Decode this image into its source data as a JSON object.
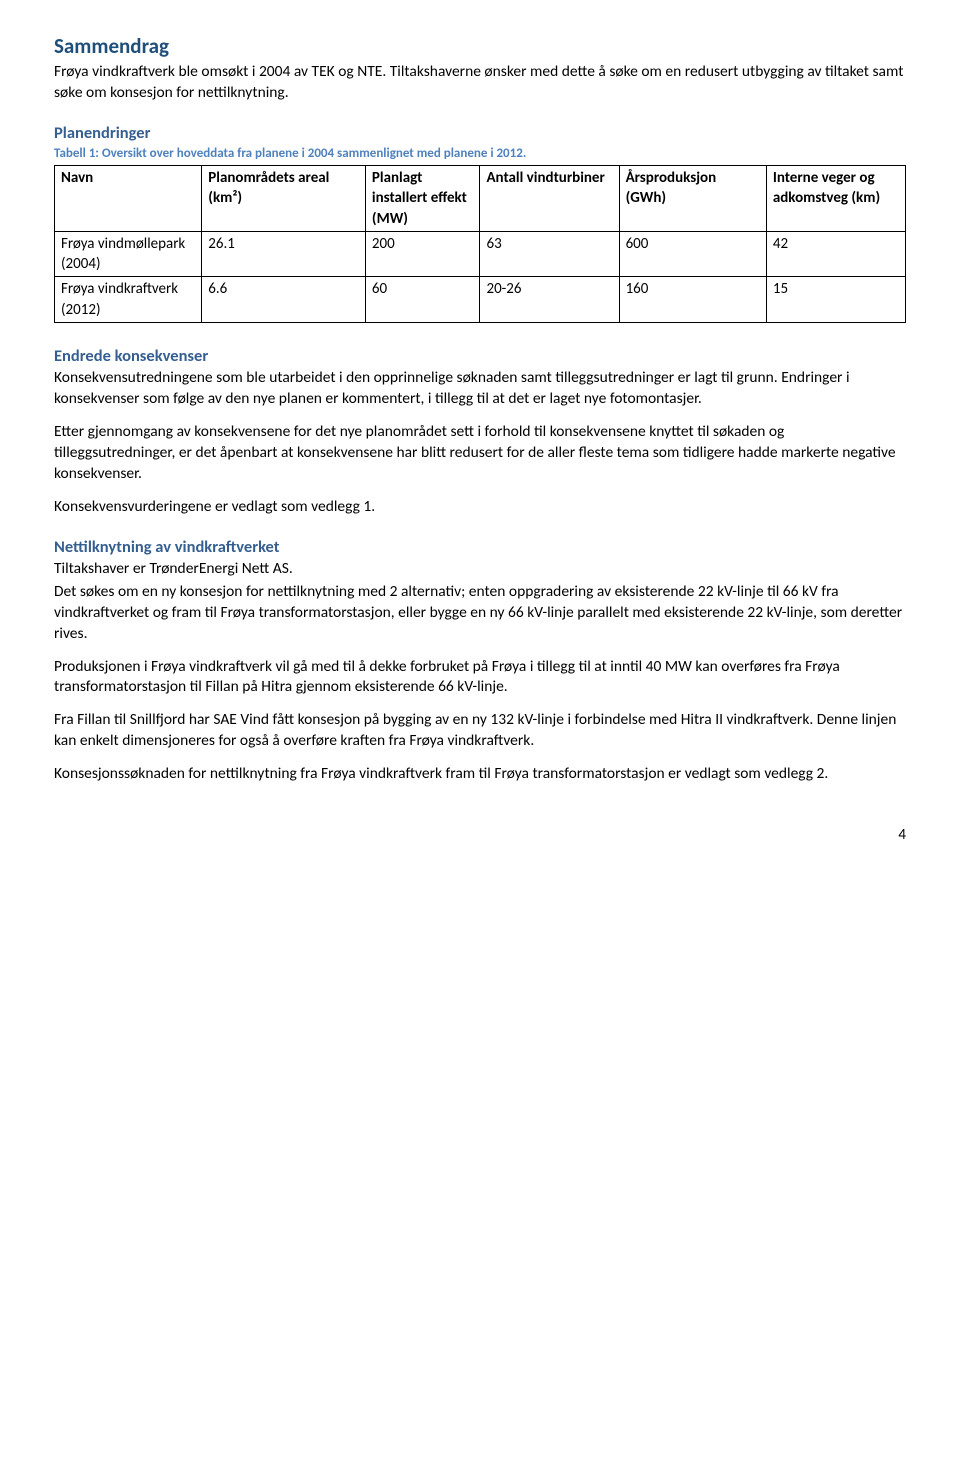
{
  "heading": "Sammendrag",
  "intro_para": "Frøya vindkraftverk ble omsøkt i 2004 av TEK og NTE. Tiltakshaverne ønsker med dette å søke om en redusert utbygging av tiltaket samt søke om konsesjon for nettilknytning.",
  "sec_plan": {
    "title": "Planendringer",
    "caption": "Tabell 1: Oversikt over hoveddata fra planene i 2004 sammenlignet med planene i 2012.",
    "table": {
      "columns": [
        "Navn",
        "Planområdets areal (km²)",
        "Planlagt installert effekt (MW)",
        "Antall vindturbiner",
        "Årsproduksjon (GWh)",
        "Interne veger og adkomstveg (km)"
      ],
      "rows": [
        [
          "Frøya vindmøllepark (2004)",
          "26.1",
          "200",
          "63",
          "600",
          "42"
        ],
        [
          "Frøya vindkraftverk (2012)",
          "6.6",
          "60",
          "20-26",
          "160",
          "15"
        ]
      ],
      "border_color": "#000000",
      "header_fontweight": "bold"
    }
  },
  "sec_endrede": {
    "title": "Endrede konsekvenser",
    "p1": "Konsekvensutredningene som ble utarbeidet i den opprinnelige søknaden samt tilleggsutredninger er lagt til grunn. Endringer i konsekvenser som følge av den nye planen er kommentert, i tillegg til at det er laget nye fotomontasjer.",
    "p2": "Etter gjennomgang av konsekvensene for det nye planområdet sett i forhold til konsekvensene knyttet til søkaden og tilleggsutredninger, er det åpenbart at konsekvensene har blitt redusert for de aller fleste tema som tidligere hadde markerte negative konsekvenser.",
    "p3": "Konsekvensvurderingene er vedlagt som vedlegg 1."
  },
  "sec_nett": {
    "title": "Nettilknytning av vindkraftverket",
    "p1": "Tiltakshaver er TrønderEnergi Nett AS.",
    "p2": "Det søkes om en ny konsesjon for nettilknytning med 2 alternativ; enten oppgradering av eksisterende 22 kV-linje til 66 kV fra vindkraftverket og fram til Frøya transformatorstasjon, eller bygge en ny 66 kV-linje parallelt med eksisterende 22 kV-linje, som deretter rives.",
    "p3": "Produksjonen i Frøya vindkraftverk vil gå med til å dekke forbruket på Frøya i tillegg til at inntil 40 MW kan overføres fra Frøya transformatorstasjon til Fillan på Hitra gjennom eksisterende 66 kV-linje.",
    "p4": "Fra Fillan til Snillfjord har SAE Vind fått konsesjon på bygging av en ny 132 kV-linje i forbindelse med Hitra II vindkraftverk. Denne linjen kan enkelt dimensjoneres for også å overføre kraften fra Frøya vindkraftverk.",
    "p5": "Konsesjonssøknaden for nettilknytning fra Frøya vindkraftverk fram til Frøya transformatorstasjon er vedlagt som vedlegg 2."
  },
  "page_number": "4",
  "colors": {
    "heading_blue": "#1f4e79",
    "subhead_blue": "#365f91",
    "caption_blue": "#4f81bd",
    "body_text": "#000000",
    "background": "#ffffff"
  }
}
